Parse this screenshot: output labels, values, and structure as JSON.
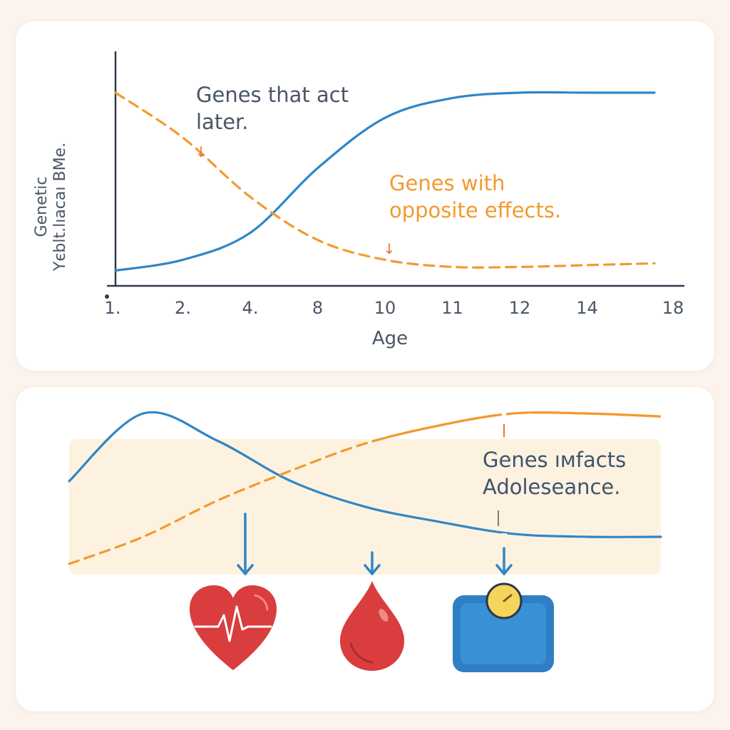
{
  "chart_data": [
    {
      "type": "line",
      "title": "",
      "xlabel": "Age",
      "ylabel": [
        "Genetic",
        "Үєblt.lıacaı ВМе."
      ],
      "categories": [
        "1.",
        "2.",
        "4.",
        "8",
        "10",
        "11",
        "12",
        "14",
        "18"
      ],
      "ylim": [
        0,
        1
      ],
      "grid": false,
      "series": [
        {
          "name": "Genes that act later.",
          "color": "#2f86c6",
          "style": "solid",
          "values": [
            0.01,
            0.07,
            0.22,
            0.58,
            0.86,
            0.97,
            1.0,
            1.0,
            1.0
          ]
        },
        {
          "name": "Genes with opposite effects.",
          "color": "#f29a2e",
          "style": "dashed",
          "values": [
            1.0,
            0.75,
            0.42,
            0.18,
            0.07,
            0.03,
            0.03,
            0.04,
            0.05
          ]
        }
      ],
      "annotations": [
        {
          "text": [
            "Genes that act",
            "later."
          ],
          "color": "#4a5566",
          "arrow_color": "#e8742c",
          "arrow_glyph": "↓"
        },
        {
          "text": [
            "Genes with",
            "opposite effects."
          ],
          "color": "#f29a2e",
          "arrow_color": "#e8742c",
          "arrow_glyph": "↓"
        }
      ]
    },
    {
      "type": "line",
      "title": "",
      "xlabel": "",
      "ylabel": "",
      "ylim": [
        0,
        1
      ],
      "grid": false,
      "series": [
        {
          "name": "blue",
          "color": "#2f86c6",
          "style": "solid",
          "values": [
            0.55,
            1.0,
            0.82,
            0.55,
            0.38,
            0.28,
            0.2,
            0.18,
            0.18
          ]
        },
        {
          "name": "orange",
          "color": "#f29a2e",
          "style": "dashed-then-solid",
          "values": [
            0.0,
            0.18,
            0.42,
            0.62,
            0.8,
            0.92,
            1.0,
            1.0,
            0.98
          ]
        }
      ],
      "annotations": [
        {
          "text": [
            "Genes ıмfacts",
            "Adoleseance."
          ],
          "color": "#3f5370"
        }
      ],
      "icons": [
        "heart-icon",
        "blood-drop-icon",
        "scale-icon"
      ]
    }
  ],
  "colors": {
    "blue": "#2f86c6",
    "orange": "#f29a2e",
    "text": "#4a5566",
    "axis": "#2f3a4c"
  }
}
